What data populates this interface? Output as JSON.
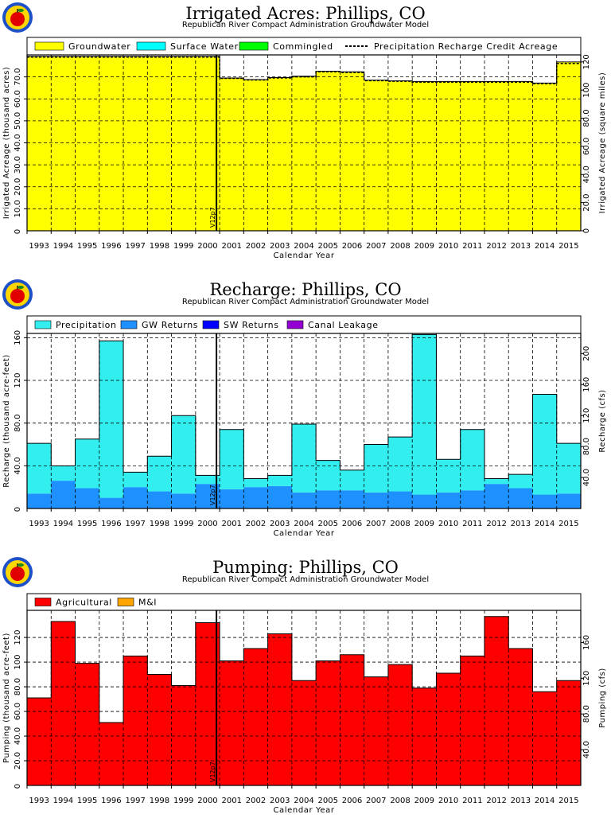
{
  "colors": {
    "groundwater": "#ffff00",
    "surface_water": "#00ffff",
    "commingled": "#00ff00",
    "precipitation": "#33eeee",
    "gw_returns": "#1e90ff",
    "sw_returns": "#0000ff",
    "canal_leakage": "#9400d3",
    "agricultural": "#ff0000",
    "mi": "#ffa500"
  },
  "logo": {
    "icon": "apple-logo-icon"
  },
  "years": [
    "1993",
    "1994",
    "1995",
    "1996",
    "1997",
    "1998",
    "1999",
    "2000",
    "2001",
    "2002",
    "2003",
    "2004",
    "2005",
    "2006",
    "2007",
    "2008",
    "2009",
    "2010",
    "2011",
    "2012",
    "2013",
    "2014",
    "2015"
  ],
  "chart_data": [
    {
      "type": "area",
      "title": "Irrigated Acres: Phillips, CO",
      "subtitle": "Republican River Compact Administration Groundwater Model",
      "xlabel": "Calendar Year",
      "ylabel": "Irrigated Acreage (thousand acres)",
      "ylabel_right": "Irrigated Acreage (square miles)",
      "ylim": [
        0,
        80
      ],
      "yticks": [
        "10.0",
        "20.0",
        "30.0",
        "40.0",
        "50.0",
        "60.0",
        "70.0"
      ],
      "yticks_right": [
        "0",
        "20.0",
        "40.0",
        "60.0",
        "80.0",
        "100",
        "120"
      ],
      "right_max": 125,
      "marker": "V12p7",
      "legend": [
        "Groundwater",
        "Surface Water",
        "Commingled",
        "Precipitation Recharge Credit Acreage"
      ],
      "grid": true,
      "legend_position": "top",
      "series": [
        {
          "name": "Groundwater",
          "values": [
            79.3,
            79.3,
            79.3,
            79.3,
            79.3,
            79.3,
            79.3,
            79.3,
            69.5,
            68.8,
            69.7,
            70.3,
            72.6,
            72.3,
            68.5,
            68.2,
            67.9,
            67.9,
            67.9,
            67.9,
            67.9,
            67.2,
            76.8
          ]
        },
        {
          "name": "Surface Water",
          "values": [
            0,
            0,
            0,
            0,
            0,
            0,
            0,
            0,
            0,
            0,
            0,
            0,
            0,
            0,
            0,
            0,
            0,
            0,
            0,
            0,
            0,
            0,
            0
          ]
        },
        {
          "name": "Commingled",
          "values": [
            0,
            0,
            0,
            0,
            0,
            0,
            0,
            0,
            0,
            0,
            0,
            0,
            0,
            0,
            0,
            0,
            0,
            0,
            0,
            0,
            0,
            0,
            0
          ]
        },
        {
          "name": "Precipitation Recharge Credit Acreage",
          "values": [
            79.0,
            79.0,
            79.0,
            79.0,
            79.0,
            79.0,
            79.0,
            79.0,
            69.3,
            68.6,
            69.5,
            70.0,
            72.3,
            72.0,
            68.3,
            68.0,
            67.6,
            67.6,
            67.6,
            67.6,
            67.6,
            66.9,
            76.1
          ]
        }
      ]
    },
    {
      "type": "bar",
      "title": "Recharge: Phillips, CO",
      "subtitle": "Republican River Compact Administration Groundwater Model",
      "xlabel": "Calendar Year",
      "ylabel": "Recharge (thousand acre-feet)",
      "ylabel_right": "Recharge (cfs)",
      "ylim": [
        0,
        164
      ],
      "yticks": [
        "40.0",
        "80.0",
        "120",
        "160"
      ],
      "yticks_right": [
        "40.0",
        "80.0",
        "120",
        "160",
        "200"
      ],
      "right_max": 226,
      "marker": "V12p7",
      "legend": [
        "Precipitation",
        "GW Returns",
        "SW Returns",
        "Canal Leakage"
      ],
      "grid": true,
      "legend_position": "top",
      "series": [
        {
          "name": "GW Returns",
          "values": [
            14,
            26,
            19,
            10,
            20,
            16,
            14,
            23,
            18,
            20,
            21,
            15,
            17,
            17,
            15,
            16,
            13,
            15,
            17,
            23,
            19,
            13,
            14
          ]
        },
        {
          "name": "Precipitation",
          "values": [
            47,
            14,
            46,
            147,
            14,
            33,
            73,
            8,
            56,
            8,
            10,
            64,
            28,
            19,
            45,
            51,
            150,
            31,
            57,
            5,
            13,
            94,
            47
          ]
        },
        {
          "name": "SW Returns",
          "values": [
            0,
            0,
            0,
            0,
            0,
            0,
            0,
            0,
            0,
            0,
            0,
            0,
            0,
            0,
            0,
            0,
            0,
            0,
            0,
            0,
            0,
            0,
            0
          ]
        },
        {
          "name": "Canal Leakage",
          "values": [
            0,
            0,
            0,
            0,
            0,
            0,
            0,
            0,
            0,
            0,
            0,
            0,
            0,
            0,
            0,
            0,
            0,
            0,
            0,
            0,
            0,
            0,
            0
          ]
        }
      ]
    },
    {
      "type": "bar",
      "title": "Pumping: Phillips, CO",
      "subtitle": "Republican River Compact Administration Groundwater Model",
      "xlabel": "Calendar Year",
      "ylabel": "Pumping (thousand acre-feet)",
      "ylabel_right": "Pumping (cfs)",
      "ylim": [
        0,
        142
      ],
      "yticks": [
        "20.0",
        "40.0",
        "60.0",
        "80.0",
        "100",
        "120"
      ],
      "yticks_right": [
        "40.0",
        "80.0",
        "120",
        "160"
      ],
      "right_max": 196,
      "marker": "V12p7",
      "legend": [
        "Agricultural",
        "M&I"
      ],
      "grid": true,
      "legend_position": "top",
      "series": [
        {
          "name": "Agricultural",
          "values": [
            71,
            133,
            99,
            51,
            105,
            90,
            81,
            132,
            101,
            111,
            123,
            85,
            101,
            106,
            88,
            98,
            79,
            91,
            105,
            137,
            111,
            76,
            85
          ]
        },
        {
          "name": "M&I",
          "values": [
            0,
            0,
            0,
            0,
            0,
            0,
            0,
            0,
            0,
            0,
            0,
            0,
            0,
            0,
            0,
            0,
            0,
            0,
            0,
            0,
            0,
            0,
            0
          ]
        }
      ]
    }
  ]
}
